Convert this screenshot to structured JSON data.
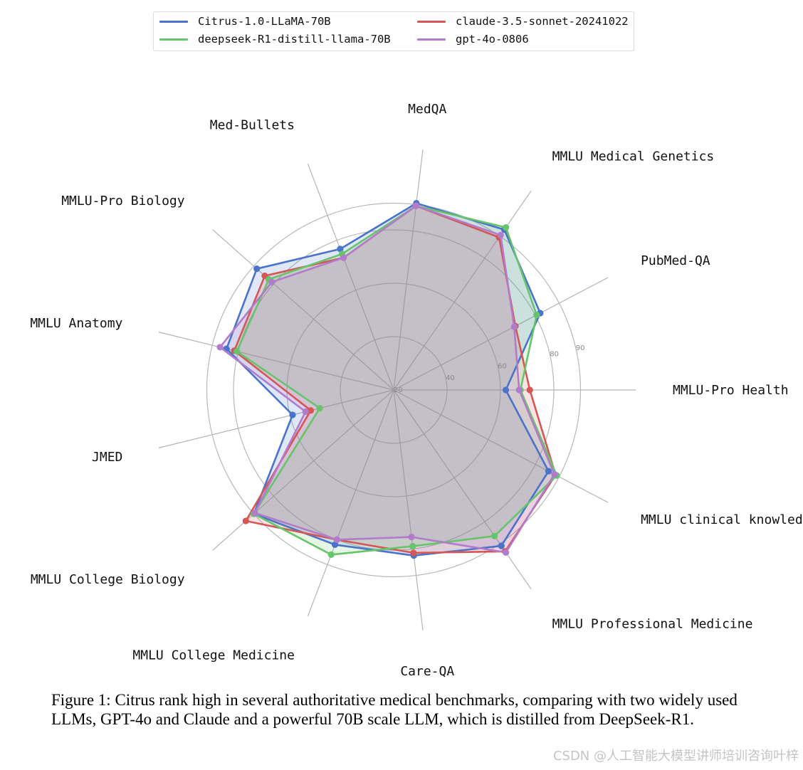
{
  "chart_data": {
    "type": "radar",
    "title": "",
    "axes": [
      "MMLU-Pro Health",
      "PubMed-QA",
      "MMLU Medical Genetics",
      "MedQA",
      "Med-Bullets",
      "MMLU-Pro Biology",
      "MMLU Anatomy",
      "JMED",
      "MMLU College Biology",
      "MMLU College Medicine",
      "Care-QA",
      "MMLU Professional Medicine",
      "MMLU clinical knowledge"
    ],
    "radial_ticks": [
      20,
      40,
      60,
      80,
      90
    ],
    "radial_tick_labels": [
      "20",
      "40",
      "60",
      "80",
      "90"
    ],
    "grid": true,
    "legend_position": "top",
    "series": [
      {
        "name": "Citrus-1.0-LLaMA-70B",
        "color": "#4a73cc",
        "values": [
          62,
          82,
          93,
          90.5,
          76.5,
          88.5,
          84.5,
          59,
          90,
          82,
          82.5,
          91,
          85.5
        ]
      },
      {
        "name": "claude-3.5-sonnet-20241022",
        "color": "#d55755",
        "values": [
          71,
          71.5,
          89.5,
          89.5,
          73,
          84.5,
          81.5,
          52,
          94,
          80,
          81.5,
          93.5,
          88.5
        ]
      },
      {
        "name": "deepseek-R1-distill-llama-70B",
        "color": "#66c56b",
        "values": [
          67.5,
          80.5,
          94,
          89.5,
          74.5,
          82.5,
          80.5,
          48.5,
          90,
          86,
          79,
          86.5,
          89
        ]
      },
      {
        "name": "gpt-4o-0806",
        "color": "#b07ccb",
        "values": [
          67,
          71,
          90.5,
          89.5,
          73,
          81,
          87,
          54,
          89.5,
          80,
          75.5,
          94,
          88
        ]
      }
    ]
  },
  "caption": "Figure 1: Citrus rank high in several authoritative medical benchmarks, comparing with two widely used LLMs, GPT-4o and Claude and a powerful 70B scale LLM, which is distilled from DeepSeek-R1.",
  "watermark": "CSDN @人工智能大模型讲师培训咨询叶梓"
}
